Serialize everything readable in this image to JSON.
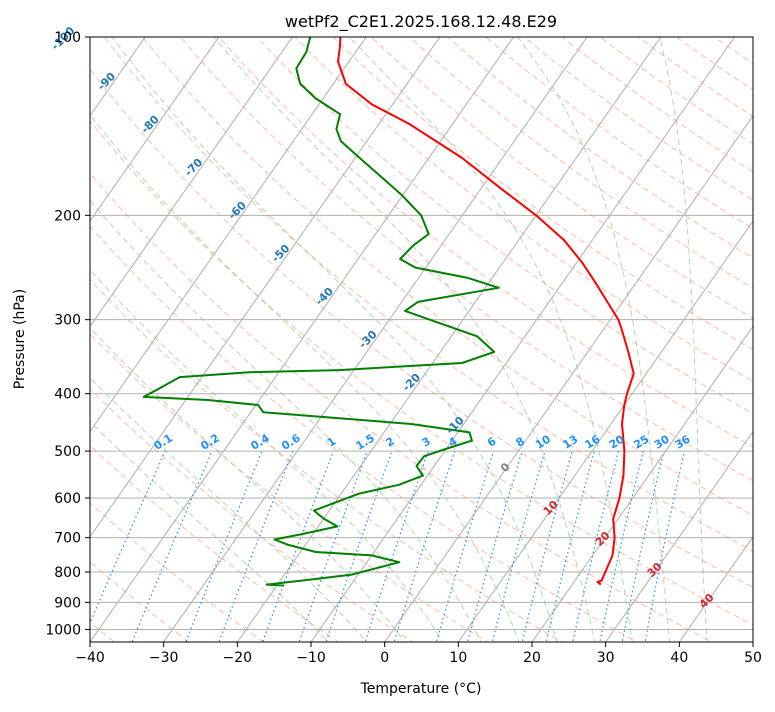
{
  "chart_data": {
    "type": "line",
    "subtype": "skew-T log-P diagram",
    "title": "wetPf2_C2E1.2025.168.12.48.E29",
    "xlabel": "Temperature (°C)",
    "ylabel": "Pressure (hPa)",
    "xlim": [
      -40,
      50
    ],
    "ylim": [
      1050,
      100
    ],
    "y_scale": "log",
    "x_ticks": [
      -40,
      -30,
      -20,
      -10,
      0,
      10,
      20,
      30,
      40,
      50
    ],
    "y_ticks": [
      100,
      200,
      300,
      400,
      500,
      600,
      700,
      800,
      900,
      1000
    ],
    "grid": true,
    "colors": {
      "temperature": "#ff0000",
      "dewpoint": "#008000",
      "isotherm": "#808080",
      "dry_adiabat": "#ff8c69",
      "moist_adiabat": "#90c890",
      "mixing_ratio": "#1e90ff",
      "frost_point_label": "#1f77b4",
      "warm_label": "#d62728",
      "zero_label": "#808080"
    },
    "series": [
      {
        "role": "temperature",
        "points": [
          {
            "p": 840,
            "t": 23.9
          },
          {
            "p": 832,
            "t": 23.2
          },
          {
            "p": 827,
            "t": 23.6
          },
          {
            "p": 800,
            "t": 23.3
          },
          {
            "p": 750,
            "t": 22.7
          },
          {
            "p": 700,
            "t": 21.3
          },
          {
            "p": 650,
            "t": 19.3
          },
          {
            "p": 600,
            "t": 18.2
          },
          {
            "p": 550,
            "t": 16.6
          },
          {
            "p": 500,
            "t": 14.4
          },
          {
            "p": 450,
            "t": 11.5
          },
          {
            "p": 420,
            "t": 10.1
          },
          {
            "p": 400,
            "t": 9.3
          },
          {
            "p": 370,
            "t": 8.3
          },
          {
            "p": 340,
            "t": 5.5
          },
          {
            "p": 310,
            "t": 2.3
          },
          {
            "p": 300,
            "t": 1.1
          },
          {
            "p": 280,
            "t": -2.1
          },
          {
            "p": 260,
            "t": -5.5
          },
          {
            "p": 240,
            "t": -9.3
          },
          {
            "p": 220,
            "t": -13.9
          },
          {
            "p": 200,
            "t": -20.0
          },
          {
            "p": 180,
            "t": -27.4
          },
          {
            "p": 160,
            "t": -35.5
          },
          {
            "p": 140,
            "t": -46.0
          },
          {
            "p": 130,
            "t": -52.8
          },
          {
            "p": 120,
            "t": -58.3
          },
          {
            "p": 110,
            "t": -61.5
          },
          {
            "p": 104,
            "t": -62.6
          },
          {
            "p": 100,
            "t": -63.5
          }
        ]
      },
      {
        "role": "dewpoint",
        "points": [
          {
            "p": 843,
            "t": -19.0
          },
          {
            "p": 840,
            "t": -21.5
          },
          {
            "p": 825,
            "t": -16.3
          },
          {
            "p": 808,
            "t": -10.9
          },
          {
            "p": 790,
            "t": -8.4
          },
          {
            "p": 770,
            "t": -5.6
          },
          {
            "p": 750,
            "t": -10.0
          },
          {
            "p": 740,
            "t": -17.9
          },
          {
            "p": 720,
            "t": -22.3
          },
          {
            "p": 705,
            "t": -24.7
          },
          {
            "p": 690,
            "t": -21.4
          },
          {
            "p": 670,
            "t": -17.4
          },
          {
            "p": 650,
            "t": -20.0
          },
          {
            "p": 630,
            "t": -22.1
          },
          {
            "p": 610,
            "t": -19.9
          },
          {
            "p": 590,
            "t": -17.6
          },
          {
            "p": 570,
            "t": -13.0
          },
          {
            "p": 550,
            "t": -10.6
          },
          {
            "p": 530,
            "t": -12.4
          },
          {
            "p": 510,
            "t": -12.3
          },
          {
            "p": 495,
            "t": -9.9
          },
          {
            "p": 480,
            "t": -7.3
          },
          {
            "p": 465,
            "t": -8.4
          },
          {
            "p": 450,
            "t": -17.1
          },
          {
            "p": 430,
            "t": -38.3
          },
          {
            "p": 418,
            "t": -39.7
          },
          {
            "p": 410,
            "t": -47.0
          },
          {
            "p": 405,
            "t": -56.0
          },
          {
            "p": 395,
            "t": -55.0
          },
          {
            "p": 375,
            "t": -53.0
          },
          {
            "p": 368,
            "t": -44.0
          },
          {
            "p": 365,
            "t": -32.0
          },
          {
            "p": 355,
            "t": -16.0
          },
          {
            "p": 340,
            "t": -12.7
          },
          {
            "p": 320,
            "t": -16.5
          },
          {
            "p": 300,
            "t": -24.5
          },
          {
            "p": 290,
            "t": -28.7
          },
          {
            "p": 280,
            "t": -27.8
          },
          {
            "p": 265,
            "t": -18.2
          },
          {
            "p": 255,
            "t": -23.3
          },
          {
            "p": 245,
            "t": -31.4
          },
          {
            "p": 237,
            "t": -34.3
          },
          {
            "p": 225,
            "t": -33.8
          },
          {
            "p": 215,
            "t": -32.8
          },
          {
            "p": 200,
            "t": -35.6
          },
          {
            "p": 185,
            "t": -40.1
          },
          {
            "p": 170,
            "t": -45.5
          },
          {
            "p": 160,
            "t": -49.4
          },
          {
            "p": 150,
            "t": -53.5
          },
          {
            "p": 143,
            "t": -55.3
          },
          {
            "p": 135,
            "t": -56.2
          },
          {
            "p": 127,
            "t": -61.0
          },
          {
            "p": 120,
            "t": -64.5
          },
          {
            "p": 113,
            "t": -66.5
          },
          {
            "p": 106,
            "t": -66.7
          },
          {
            "p": 100,
            "t": -67.6
          }
        ]
      }
    ],
    "frost_point_labels": [
      "-100",
      "-90",
      "-80",
      "-70",
      "-60",
      "-50",
      "-40",
      "-30",
      "-20",
      "-10"
    ],
    "zero_label": "0",
    "warm_labels": [
      "10",
      "20",
      "30",
      "40"
    ],
    "mixing_ratio_labels": [
      "0.1",
      "0.2",
      "0.4",
      "0.6",
      "1",
      "1.5",
      "2",
      "3",
      "4",
      "6",
      "8",
      "10",
      "13",
      "16",
      "20",
      "25",
      "30",
      "36"
    ],
    "mixing_ratio_values": [
      0.1,
      0.2,
      0.4,
      0.6,
      1,
      1.5,
      2,
      3,
      4,
      6,
      8,
      10,
      13,
      16,
      20,
      25,
      30,
      36
    ]
  }
}
